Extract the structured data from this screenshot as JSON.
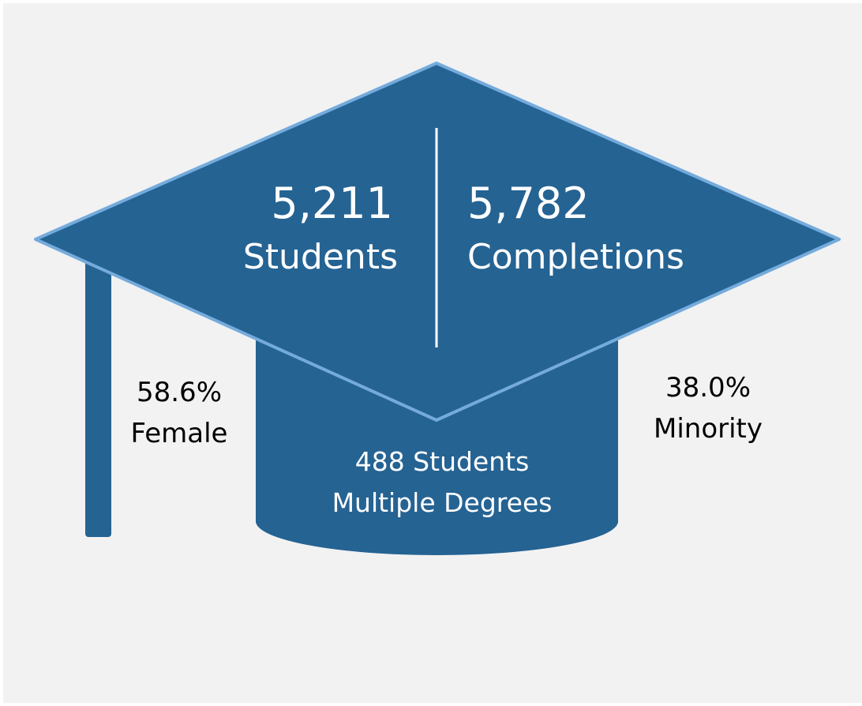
{
  "students": {
    "value": "5,211",
    "label": "Students"
  },
  "completions": {
    "value": "5,782",
    "label": "Completions"
  },
  "female": {
    "value": "58.6%",
    "label": "Female"
  },
  "minority": {
    "value": "38.0%",
    "label": "Minority"
  },
  "multiple_degrees": {
    "line1": "488 Students",
    "line2": "Multiple Degrees"
  }
}
